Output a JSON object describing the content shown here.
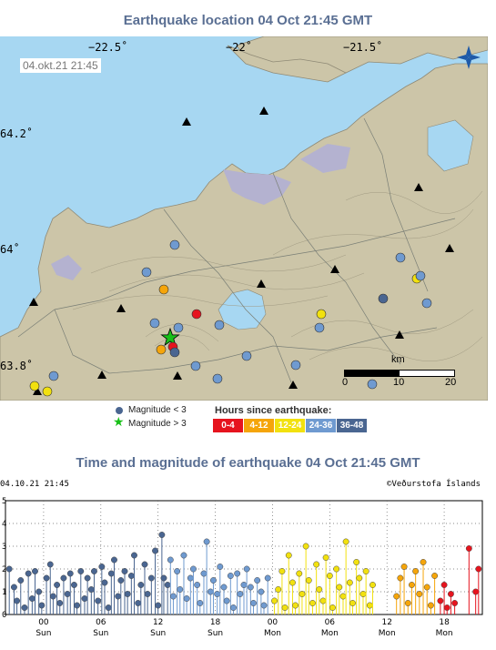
{
  "map": {
    "title": "Earthquake location   04 Oct 21:45 GMT",
    "timestamp": "04.okt.21  21:45",
    "lon_labels": [
      "−22.5˚",
      "−22˚",
      "−21.5˚"
    ],
    "lat_labels": [
      "64.2˚",
      "64˚",
      "63.8˚"
    ],
    "scale": {
      "unit": "km",
      "ticks": [
        "0",
        "10",
        "20"
      ]
    },
    "compass_icon": "compass-rose-icon",
    "colors": {
      "sea": "#a7d7f2",
      "land": "#ccc5a8",
      "lava": "#b4b2d0",
      "contour": "#a09a82",
      "road": "#7a7f76"
    },
    "volcano_markers": [
      [
        290,
        82
      ],
      [
        205,
        94
      ],
      [
        460,
        166
      ],
      [
        368,
        256
      ],
      [
        494,
        233
      ],
      [
        287,
        272
      ],
      [
        37,
        292
      ],
      [
        133,
        299
      ],
      [
        439,
        328
      ],
      [
        322,
        383
      ],
      [
        112,
        372
      ],
      [
        195,
        373
      ],
      [
        41,
        390
      ]
    ],
    "quakes": [
      {
        "x": 187,
        "y": 331,
        "age": "0-4",
        "star": true
      },
      {
        "x": 216,
        "y": 305,
        "age": "0-4"
      },
      {
        "x": 190,
        "y": 341,
        "age": "0-4"
      },
      {
        "x": 180,
        "y": 278,
        "age": "4-12"
      },
      {
        "x": 177,
        "y": 344,
        "age": "4-12"
      },
      {
        "x": 353,
        "y": 305,
        "age": "12-24"
      },
      {
        "x": 458,
        "y": 266,
        "age": "12-24"
      },
      {
        "x": 52,
        "y": 390,
        "age": "12-24"
      },
      {
        "x": 38,
        "y": 384,
        "age": "12-24"
      },
      {
        "x": 192,
        "y": 229,
        "age": "24-36"
      },
      {
        "x": 161,
        "y": 259,
        "age": "24-36"
      },
      {
        "x": 241,
        "y": 317,
        "age": "24-36"
      },
      {
        "x": 170,
        "y": 315,
        "age": "24-36"
      },
      {
        "x": 351,
        "y": 320,
        "age": "24-36"
      },
      {
        "x": 440,
        "y": 243,
        "age": "24-36"
      },
      {
        "x": 462,
        "y": 263,
        "age": "24-36"
      },
      {
        "x": 469,
        "y": 293,
        "age": "24-36"
      },
      {
        "x": 271,
        "y": 351,
        "age": "24-36"
      },
      {
        "x": 325,
        "y": 361,
        "age": "24-36"
      },
      {
        "x": 215,
        "y": 362,
        "age": "24-36"
      },
      {
        "x": 239,
        "y": 376,
        "age": "24-36"
      },
      {
        "x": 409,
        "y": 382,
        "age": "24-36"
      },
      {
        "x": 59,
        "y": 373,
        "age": "24-36"
      },
      {
        "x": 196,
        "y": 320,
        "age": "24-36"
      },
      {
        "x": 421,
        "y": 288,
        "age": "36-48"
      },
      {
        "x": 192,
        "y": 347,
        "age": "36-48"
      }
    ]
  },
  "legend": {
    "small_label": "Magnitude < 3",
    "large_label": "Magnitude > 3",
    "hours_title": "Hours since earthquake:",
    "hour_bins": [
      {
        "label": "0-4",
        "color": "#e6141e"
      },
      {
        "label": "4-12",
        "color": "#f5a50a"
      },
      {
        "label": "12-24",
        "color": "#f2e10f"
      },
      {
        "label": "24-36",
        "color": "#6f9ad0"
      },
      {
        "label": "36-48",
        "color": "#4a6691"
      }
    ]
  },
  "chart_header": {
    "title": "Time and magnitude of earthquake   04 Oct 21:45 GMT",
    "timestamp": "04.10.21  21:45",
    "credit": "©Veðurstofa Íslands"
  },
  "chart_data": {
    "type": "scatter",
    "title": "Time and magnitude of earthquake   04 Oct 21:45 GMT",
    "xlabel": "",
    "ylabel": "",
    "x_unit": "hours since Sun 00:00",
    "xlim": [
      -4,
      46
    ],
    "ylim": [
      0,
      5
    ],
    "y_ticks": [
      "0",
      "1",
      "2",
      "3",
      "4",
      "5"
    ],
    "x_ticks": [
      {
        "x": 0,
        "time": "00",
        "day": "Sun"
      },
      {
        "x": 6,
        "time": "06",
        "day": "Sun"
      },
      {
        "x": 12,
        "time": "12",
        "day": "Sun"
      },
      {
        "x": 18,
        "time": "18",
        "day": "Sun"
      },
      {
        "x": 24,
        "time": "00",
        "day": "Mon"
      },
      {
        "x": 30,
        "time": "06",
        "day": "Mon"
      },
      {
        "x": 36,
        "time": "12",
        "day": "Mon"
      },
      {
        "x": 42,
        "time": "18",
        "day": "Mon"
      }
    ],
    "grid": true,
    "series": [
      {
        "age": "36-48",
        "color": "#4a6691",
        "points": [
          [
            -3.6,
            2.0
          ],
          [
            -3.1,
            1.2
          ],
          [
            -2.8,
            0.6
          ],
          [
            -2.4,
            1.5
          ],
          [
            -2.0,
            0.3
          ],
          [
            -1.6,
            1.8
          ],
          [
            -1.2,
            0.7
          ],
          [
            -0.9,
            1.9
          ],
          [
            -0.5,
            1.0
          ],
          [
            -0.2,
            0.4
          ],
          [
            0.3,
            1.6
          ],
          [
            0.7,
            2.2
          ],
          [
            1.0,
            0.8
          ],
          [
            1.4,
            1.3
          ],
          [
            1.7,
            0.5
          ],
          [
            2.1,
            1.6
          ],
          [
            2.5,
            0.9
          ],
          [
            2.8,
            1.8
          ],
          [
            3.2,
            1.3
          ],
          [
            3.5,
            0.4
          ],
          [
            3.9,
            1.9
          ],
          [
            4.3,
            0.7
          ],
          [
            4.6,
            1.6
          ],
          [
            5.0,
            1.1
          ],
          [
            5.3,
            1.9
          ],
          [
            5.7,
            0.6
          ],
          [
            6.1,
            2.1
          ],
          [
            6.4,
            1.4
          ],
          [
            6.8,
            0.3
          ],
          [
            7.1,
            1.8
          ],
          [
            7.4,
            2.4
          ],
          [
            7.8,
            0.8
          ],
          [
            8.1,
            1.5
          ],
          [
            8.5,
            1.9
          ],
          [
            8.8,
            0.9
          ],
          [
            9.2,
            1.7
          ],
          [
            9.5,
            2.6
          ],
          [
            9.9,
            0.5
          ],
          [
            10.2,
            1.3
          ],
          [
            10.6,
            2.2
          ],
          [
            10.9,
            0.9
          ],
          [
            11.3,
            1.6
          ],
          [
            11.7,
            2.8
          ],
          [
            12.0,
            0.4
          ],
          [
            12.4,
            3.5
          ],
          [
            12.6,
            1.6
          ],
          [
            13.0,
            1.3
          ]
        ]
      },
      {
        "age": "24-36",
        "color": "#6f9ad0",
        "points": [
          [
            13.3,
            2.4
          ],
          [
            13.6,
            0.8
          ],
          [
            14.0,
            1.9
          ],
          [
            14.3,
            1.1
          ],
          [
            14.7,
            2.6
          ],
          [
            15.0,
            0.7
          ],
          [
            15.4,
            1.6
          ],
          [
            15.7,
            2.0
          ],
          [
            16.1,
            1.3
          ],
          [
            16.4,
            0.5
          ],
          [
            16.8,
            1.8
          ],
          [
            17.1,
            3.2
          ],
          [
            17.5,
            1.0
          ],
          [
            17.8,
            1.5
          ],
          [
            18.2,
            0.9
          ],
          [
            18.5,
            2.1
          ],
          [
            18.9,
            1.2
          ],
          [
            19.2,
            0.6
          ],
          [
            19.6,
            1.7
          ],
          [
            19.9,
            0.3
          ],
          [
            20.3,
            1.8
          ],
          [
            20.6,
            0.9
          ],
          [
            21.0,
            1.3
          ],
          [
            21.3,
            2.0
          ],
          [
            21.7,
            1.2
          ],
          [
            22.0,
            0.5
          ],
          [
            22.4,
            1.5
          ],
          [
            22.8,
            1.0
          ],
          [
            23.1,
            0.4
          ],
          [
            23.5,
            1.6
          ]
        ]
      },
      {
        "age": "12-24",
        "color": "#f2e10f",
        "points": [
          [
            24.2,
            0.6
          ],
          [
            24.6,
            1.1
          ],
          [
            25.0,
            1.9
          ],
          [
            25.3,
            0.3
          ],
          [
            25.7,
            2.6
          ],
          [
            26.1,
            1.4
          ],
          [
            26.4,
            0.4
          ],
          [
            26.8,
            1.8
          ],
          [
            27.1,
            0.9
          ],
          [
            27.5,
            3.0
          ],
          [
            27.8,
            1.5
          ],
          [
            28.2,
            0.5
          ],
          [
            28.6,
            2.2
          ],
          [
            28.9,
            1.1
          ],
          [
            29.3,
            0.6
          ],
          [
            29.6,
            2.5
          ],
          [
            30.0,
            1.7
          ],
          [
            30.3,
            0.3
          ],
          [
            30.7,
            2.0
          ],
          [
            31.0,
            1.2
          ],
          [
            31.4,
            0.8
          ],
          [
            31.7,
            3.2
          ],
          [
            32.1,
            1.4
          ],
          [
            32.4,
            0.5
          ],
          [
            32.8,
            2.3
          ],
          [
            33.1,
            1.6
          ],
          [
            33.5,
            0.9
          ],
          [
            33.8,
            1.9
          ],
          [
            34.2,
            0.4
          ],
          [
            34.5,
            1.3
          ]
        ]
      },
      {
        "age": "4-12",
        "color": "#f5a50a",
        "points": [
          [
            37.0,
            0.8
          ],
          [
            37.4,
            1.6
          ],
          [
            37.8,
            2.1
          ],
          [
            38.2,
            0.5
          ],
          [
            38.6,
            1.3
          ],
          [
            39.0,
            1.9
          ],
          [
            39.4,
            0.9
          ],
          [
            39.8,
            2.3
          ],
          [
            40.2,
            1.2
          ],
          [
            40.6,
            0.4
          ],
          [
            41.0,
            1.7
          ]
        ]
      },
      {
        "age": "0-4",
        "color": "#e6141e",
        "points": [
          [
            41.6,
            0.6
          ],
          [
            42.0,
            1.3
          ],
          [
            42.3,
            0.3
          ],
          [
            42.7,
            0.9
          ],
          [
            43.1,
            0.5
          ],
          [
            44.6,
            2.9
          ],
          [
            45.3,
            1.0
          ],
          [
            45.6,
            2.0
          ]
        ]
      }
    ]
  }
}
